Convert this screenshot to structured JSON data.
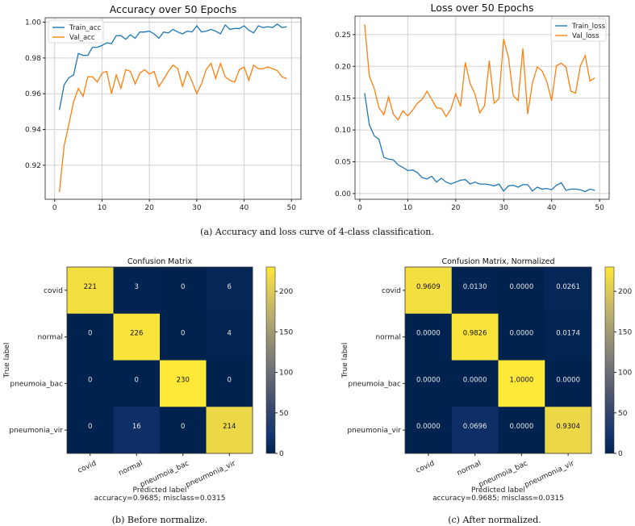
{
  "chart_data": [
    {
      "type": "line",
      "title": "Accuracy over 50 Epochs",
      "xlabel": "",
      "ylabel": "",
      "xlim": [
        -2,
        52
      ],
      "ylim": [
        0.901,
        1.0025
      ],
      "xticks": [
        0,
        10,
        20,
        30,
        40,
        50
      ],
      "yticks": [
        0.92,
        0.94,
        0.96,
        0.98,
        1.0
      ],
      "ytick_labels": [
        "0.92",
        "0.94",
        "0.96",
        "0.98",
        "1.00"
      ],
      "grid": true,
      "legend": "top-left",
      "x": [
        1,
        2,
        3,
        4,
        5,
        6,
        7,
        8,
        9,
        10,
        11,
        12,
        13,
        14,
        15,
        16,
        17,
        18,
        19,
        20,
        21,
        22,
        23,
        24,
        25,
        26,
        27,
        28,
        29,
        30,
        31,
        32,
        33,
        34,
        35,
        36,
        37,
        38,
        39,
        40,
        41,
        42,
        43,
        44,
        45,
        46,
        47,
        48,
        49
      ],
      "series": [
        {
          "name": "Train_acc",
          "color": "#1f77b4",
          "values": [
            0.951,
            0.965,
            0.969,
            0.9705,
            0.9825,
            0.9815,
            0.9815,
            0.986,
            0.986,
            0.987,
            0.9885,
            0.988,
            0.9925,
            0.9925,
            0.9905,
            0.993,
            0.991,
            0.9945,
            0.9945,
            0.995,
            0.9935,
            0.991,
            0.9945,
            0.994,
            0.996,
            0.9945,
            0.9935,
            0.995,
            0.9945,
            0.998,
            0.9945,
            0.995,
            0.996,
            0.995,
            0.9935,
            0.9985,
            0.996,
            0.9965,
            0.9965,
            0.998,
            0.9955,
            0.994,
            0.998,
            0.997,
            0.9975,
            0.997,
            0.999,
            0.997,
            0.9975
          ]
        },
        {
          "name": "Val_acc",
          "color": "#ff7f0e",
          "values": [
            0.905,
            0.931,
            0.943,
            0.9555,
            0.963,
            0.9585,
            0.9695,
            0.9695,
            0.9665,
            0.9715,
            0.9725,
            0.96,
            0.9705,
            0.963,
            0.9735,
            0.9725,
            0.9655,
            0.9715,
            0.9735,
            0.971,
            0.9725,
            0.964,
            0.968,
            0.9725,
            0.976,
            0.974,
            0.964,
            0.9725,
            0.967,
            0.96,
            0.9655,
            0.9735,
            0.977,
            0.9685,
            0.977,
            0.9695,
            0.9675,
            0.9665,
            0.9735,
            0.975,
            0.9675,
            0.976,
            0.974,
            0.974,
            0.975,
            0.974,
            0.973,
            0.9695,
            0.9685
          ]
        }
      ]
    },
    {
      "type": "line",
      "title": "Loss over 50 Epochs",
      "xlabel": "",
      "ylabel": "",
      "xlim": [
        -1,
        52
      ],
      "ylim": [
        -0.009,
        0.279
      ],
      "xticks": [
        0,
        10,
        20,
        30,
        40,
        50
      ],
      "yticks": [
        0,
        0.05,
        0.1,
        0.15,
        0.2,
        0.25
      ],
      "ytick_labels": [
        "0.00",
        "0.05",
        "0.10",
        "0.15",
        "0.20",
        "0.25"
      ],
      "grid": true,
      "legend": "top-right",
      "x": [
        1,
        2,
        3,
        4,
        5,
        6,
        7,
        8,
        9,
        10,
        11,
        12,
        13,
        14,
        15,
        16,
        17,
        18,
        19,
        20,
        21,
        22,
        23,
        24,
        25,
        26,
        27,
        28,
        29,
        30,
        31,
        32,
        33,
        34,
        35,
        36,
        37,
        38,
        39,
        40,
        41,
        42,
        43,
        44,
        45,
        46,
        47,
        48,
        49
      ],
      "series": [
        {
          "name": "Train_loss",
          "color": "#1f77b4",
          "values": [
            0.158,
            0.108,
            0.091,
            0.085,
            0.057,
            0.054,
            0.053,
            0.045,
            0.041,
            0.036,
            0.037,
            0.033,
            0.025,
            0.023,
            0.027,
            0.018,
            0.024,
            0.018,
            0.015,
            0.018,
            0.021,
            0.022,
            0.015,
            0.018,
            0.015,
            0.015,
            0.014,
            0.012,
            0.015,
            0.004,
            0.012,
            0.013,
            0.01,
            0.014,
            0.014,
            0.004,
            0.01,
            0.007,
            0.008,
            0.006,
            0.013,
            0.017,
            0.005,
            0.007,
            0.007,
            0.006,
            0.003,
            0.007,
            0.005
          ]
        },
        {
          "name": "Val_loss",
          "color": "#ff7f0e",
          "values": [
            0.266,
            0.185,
            0.165,
            0.135,
            0.124,
            0.152,
            0.125,
            0.116,
            0.13,
            0.122,
            0.131,
            0.142,
            0.148,
            0.161,
            0.148,
            0.135,
            0.134,
            0.121,
            0.133,
            0.157,
            0.137,
            0.206,
            0.173,
            0.157,
            0.127,
            0.138,
            0.209,
            0.142,
            0.149,
            0.243,
            0.214,
            0.154,
            0.146,
            0.228,
            0.125,
            0.174,
            0.199,
            0.193,
            0.176,
            0.146,
            0.201,
            0.205,
            0.199,
            0.161,
            0.158,
            0.201,
            0.217,
            0.177,
            0.182
          ]
        }
      ]
    },
    {
      "type": "heatmap",
      "title": "Confusion Matrix",
      "xlabel": "Predicted label",
      "xlabel_sub": "accuracy=0.9685; misclass=0.0315",
      "ylabel": "True label",
      "row_labels": [
        "covid",
        "normal",
        "pneumoia_bac",
        "pneumonia_vir"
      ],
      "col_labels": [
        "covid",
        "normal",
        "pneumoia_bac",
        "pneumonia_vir"
      ],
      "counts": [
        [
          221,
          3,
          0,
          6
        ],
        [
          0,
          226,
          0,
          4
        ],
        [
          0,
          0,
          230,
          0
        ],
        [
          0,
          16,
          0,
          214
        ]
      ],
      "cell_text": [
        [
          "221",
          "3",
          "0",
          "6"
        ],
        [
          "0",
          "226",
          "0",
          "4"
        ],
        [
          "0",
          "0",
          "230",
          "0"
        ],
        [
          "0",
          "16",
          "0",
          "214"
        ]
      ],
      "colormap": "cividis",
      "colorbar_range": [
        0,
        230
      ],
      "colorbar_ticks": [
        0,
        50,
        100,
        150,
        200
      ],
      "colorbar_tick_labels": [
        "0",
        "50",
        "100",
        "150",
        "200"
      ]
    },
    {
      "type": "heatmap",
      "title": "Confusion Matrix, Normalized",
      "xlabel": "Predicted label",
      "xlabel_sub": "accuracy=0.9685; misclass=0.0315",
      "ylabel": "True label",
      "row_labels": [
        "covid",
        "normal",
        "pneumoia_bac",
        "pneumonia_vir"
      ],
      "col_labels": [
        "covid",
        "normal",
        "pneumoia_bac",
        "pneumonia_vir"
      ],
      "counts": [
        [
          221,
          3,
          0,
          6
        ],
        [
          0,
          226,
          0,
          4
        ],
        [
          0,
          0,
          230,
          0
        ],
        [
          0,
          16,
          0,
          214
        ]
      ],
      "cell_text": [
        [
          "0.9609",
          "0.0130",
          "0.0000",
          "0.0261"
        ],
        [
          "0.0000",
          "0.9826",
          "0.0000",
          "0.0174"
        ],
        [
          "0.0000",
          "0.0000",
          "1.0000",
          "0.0000"
        ],
        [
          "0.0000",
          "0.0696",
          "0.0000",
          "0.9304"
        ]
      ],
      "colormap": "cividis",
      "colorbar_range": [
        0,
        230
      ],
      "colorbar_ticks": [
        0,
        50,
        100,
        150,
        200
      ],
      "colorbar_tick_labels": [
        "0",
        "50",
        "100",
        "150",
        "200"
      ]
    }
  ],
  "captions": {
    "a": "(a) Accuracy and loss curve of 4-class classification.",
    "b": "(b) Before normalize.",
    "c": "(c) After normalized."
  }
}
